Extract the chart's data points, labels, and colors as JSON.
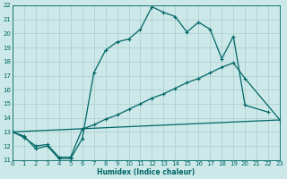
{
  "xlabel": "Humidex (Indice chaleur)",
  "bg_color": "#cce8e8",
  "grid_color": "#aacccc",
  "line_color": "#006666",
  "xmin": 0,
  "xmax": 23,
  "ymin": 11,
  "ymax": 22,
  "line1_x": [
    0,
    1,
    2,
    3,
    4,
    5,
    6,
    7,
    8,
    9,
    10,
    11,
    12,
    13,
    14,
    15,
    16,
    17,
    18,
    19,
    20,
    22
  ],
  "line1_y": [
    13.0,
    12.7,
    11.8,
    12.0,
    11.1,
    11.1,
    12.5,
    17.2,
    18.8,
    19.4,
    19.6,
    20.3,
    21.9,
    21.5,
    21.2,
    20.1,
    20.8,
    20.3,
    18.2,
    19.8,
    14.9,
    14.4
  ],
  "line2_x": [
    0,
    1,
    2,
    3,
    4,
    5,
    6,
    7,
    8,
    9,
    10,
    11,
    12,
    13,
    14,
    15,
    16,
    17,
    18,
    19,
    20,
    23
  ],
  "line2_y": [
    13.0,
    12.6,
    12.0,
    12.1,
    11.2,
    11.2,
    13.2,
    13.5,
    13.9,
    14.2,
    14.6,
    15.0,
    15.4,
    15.7,
    16.1,
    16.5,
    16.8,
    17.2,
    17.6,
    17.9,
    16.8,
    13.85
  ],
  "line3_x": [
    0,
    23
  ],
  "line3_y": [
    13.0,
    13.85
  ]
}
